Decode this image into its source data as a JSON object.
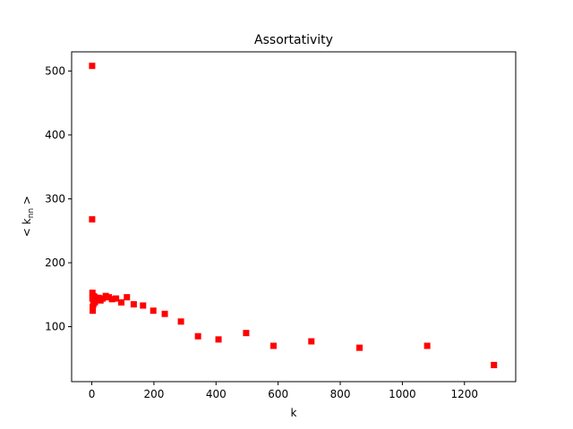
{
  "chart_data": {
    "type": "scatter",
    "title": "Assortativity",
    "xlabel": "k",
    "ylabel": "< k_nn >",
    "xlim": [
      -65,
      1365
    ],
    "ylim": [
      14,
      530
    ],
    "xticks": [
      0,
      200,
      400,
      600,
      800,
      1000,
      1200
    ],
    "yticks": [
      100,
      200,
      300,
      400,
      500
    ],
    "grid": false,
    "legend": "none",
    "marker": "square",
    "color": "#ff0000",
    "series": [
      {
        "x": [
          1,
          1,
          2,
          2,
          3,
          3,
          4,
          5,
          6,
          8,
          10,
          12,
          15,
          18,
          22,
          28,
          35,
          45,
          55,
          65,
          78,
          95,
          113,
          135,
          165,
          198,
          235,
          287,
          342,
          408,
          497,
          585,
          707,
          862,
          1080,
          1295
        ],
        "y": [
          508,
          268,
          144,
          153,
          125,
          131,
          148,
          135,
          140,
          147,
          138,
          143,
          145,
          142,
          145,
          141,
          144,
          148,
          146,
          143,
          144,
          138,
          146,
          135,
          133,
          125,
          120,
          108,
          85,
          80,
          90,
          70,
          77,
          67,
          70,
          40
        ]
      }
    ]
  }
}
